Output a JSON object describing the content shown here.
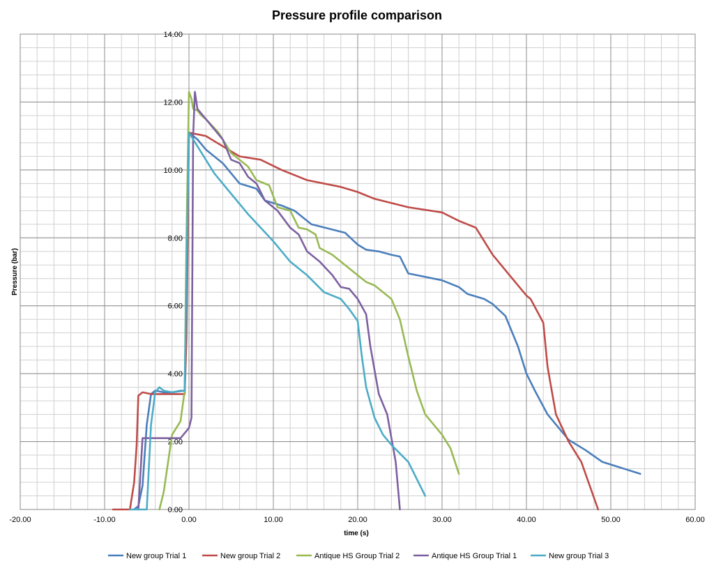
{
  "chart_data": {
    "type": "line",
    "title": "Pressure profile comparison",
    "xlabel": "time (s)",
    "ylabel": "Pressure (bar)",
    "xlim": [
      -20,
      60
    ],
    "ylim": [
      0,
      14
    ],
    "x_major_ticks": [
      -20,
      -10,
      0,
      10,
      20,
      30,
      40,
      50,
      60
    ],
    "y_major_ticks": [
      0,
      2,
      4,
      6,
      8,
      10,
      12,
      14
    ],
    "x_tick_labels": [
      "-20.00",
      "-10.00",
      "0.00",
      "10.00",
      "20.00",
      "30.00",
      "40.00",
      "50.00",
      "60.00"
    ],
    "y_tick_labels": [
      "0.00",
      "2.00",
      "4.00",
      "6.00",
      "8.00",
      "10.00",
      "12.00",
      "14.00"
    ],
    "grid": true,
    "legend_position": "bottom",
    "series": [
      {
        "name": "New group Trial 1",
        "color": "#4A7EBB",
        "points": [
          [
            -6.5,
            0
          ],
          [
            -6,
            0.1
          ],
          [
            -5.5,
            0.7
          ],
          [
            -5,
            2.5
          ],
          [
            -4.5,
            3.4
          ],
          [
            -4,
            3.5
          ],
          [
            -3,
            3.45
          ],
          [
            -2,
            3.45
          ],
          [
            -0.5,
            3.5
          ],
          [
            -0.2,
            8
          ],
          [
            0,
            11.1
          ],
          [
            1,
            10.9
          ],
          [
            2,
            10.6
          ],
          [
            4,
            10.2
          ],
          [
            6,
            9.6
          ],
          [
            8,
            9.45
          ],
          [
            9,
            9.1
          ],
          [
            11,
            8.95
          ],
          [
            12.5,
            8.8
          ],
          [
            14.5,
            8.4
          ],
          [
            18.5,
            8.15
          ],
          [
            20,
            7.8
          ],
          [
            21,
            7.65
          ],
          [
            22.5,
            7.6
          ],
          [
            24,
            7.5
          ],
          [
            25,
            7.45
          ],
          [
            26,
            6.95
          ],
          [
            30,
            6.75
          ],
          [
            32,
            6.55
          ],
          [
            33,
            6.35
          ],
          [
            35,
            6.2
          ],
          [
            36,
            6.05
          ],
          [
            37.5,
            5.7
          ],
          [
            39,
            4.8
          ],
          [
            40,
            4
          ],
          [
            41,
            3.5
          ],
          [
            42.5,
            2.8
          ],
          [
            45,
            2.05
          ],
          [
            47,
            1.75
          ],
          [
            49,
            1.4
          ],
          [
            53.5,
            1.05
          ]
        ]
      },
      {
        "name": "New group Trial 2",
        "color": "#BE4B48",
        "points": [
          [
            -9,
            0
          ],
          [
            -7,
            0
          ],
          [
            -6.5,
            0.8
          ],
          [
            -6.2,
            1.9
          ],
          [
            -6,
            3.35
          ],
          [
            -5.5,
            3.45
          ],
          [
            -4.5,
            3.4
          ],
          [
            -3,
            3.4
          ],
          [
            -1,
            3.4
          ],
          [
            -0.5,
            3.4
          ],
          [
            -0.3,
            5
          ],
          [
            0,
            11.1
          ],
          [
            2,
            11
          ],
          [
            4,
            10.7
          ],
          [
            6,
            10.4
          ],
          [
            8.5,
            10.3
          ],
          [
            11,
            10
          ],
          [
            14,
            9.7
          ],
          [
            18,
            9.5
          ],
          [
            20,
            9.35
          ],
          [
            22,
            9.15
          ],
          [
            26,
            8.9
          ],
          [
            30,
            8.75
          ],
          [
            32,
            8.5
          ],
          [
            34,
            8.3
          ],
          [
            36,
            7.5
          ],
          [
            38,
            6.9
          ],
          [
            40,
            6.3
          ],
          [
            40.5,
            6.2
          ],
          [
            42,
            5.5
          ],
          [
            42.5,
            4.2
          ],
          [
            43,
            3.5
          ],
          [
            43.5,
            2.8
          ],
          [
            45,
            2.0
          ],
          [
            46.5,
            1.4
          ],
          [
            48.5,
            0
          ]
        ]
      },
      {
        "name": "Antique HS Group Trial 2",
        "color": "#98B954",
        "points": [
          [
            -3.5,
            0
          ],
          [
            -3,
            0.5
          ],
          [
            -2,
            2.2
          ],
          [
            -1,
            2.6
          ],
          [
            -0.5,
            3.5
          ],
          [
            -0.3,
            8
          ],
          [
            0,
            12.3
          ],
          [
            0.3,
            12.1
          ],
          [
            0.5,
            11.8
          ],
          [
            1,
            11.75
          ],
          [
            1.5,
            11.6
          ],
          [
            2,
            11.5
          ],
          [
            3.5,
            11.1
          ],
          [
            5,
            10.5
          ],
          [
            7,
            10.1
          ],
          [
            8,
            9.7
          ],
          [
            9.5,
            9.55
          ],
          [
            10.5,
            8.9
          ],
          [
            12,
            8.8
          ],
          [
            13,
            8.3
          ],
          [
            14,
            8.25
          ],
          [
            15,
            8.1
          ],
          [
            15.5,
            7.7
          ],
          [
            17,
            7.5
          ],
          [
            20,
            6.9
          ],
          [
            21,
            6.7
          ],
          [
            22,
            6.6
          ],
          [
            24,
            6.2
          ],
          [
            25,
            5.6
          ],
          [
            26,
            4.5
          ],
          [
            27,
            3.5
          ],
          [
            28,
            2.8
          ],
          [
            30,
            2.2
          ],
          [
            31,
            1.8
          ],
          [
            32,
            1.05
          ]
        ]
      },
      {
        "name": "Antique HS Group Trial 1",
        "color": "#7D60A0",
        "points": [
          [
            -6,
            0
          ],
          [
            -5.5,
            2.1
          ],
          [
            -5,
            2.1
          ],
          [
            -3,
            2.1
          ],
          [
            -1,
            2.1
          ],
          [
            0,
            2.4
          ],
          [
            0.3,
            2.7
          ],
          [
            0.5,
            11
          ],
          [
            0.7,
            12.3
          ],
          [
            1,
            11.8
          ],
          [
            2,
            11.5
          ],
          [
            3,
            11.2
          ],
          [
            4,
            10.9
          ],
          [
            5,
            10.3
          ],
          [
            6,
            10.2
          ],
          [
            7,
            9.8
          ],
          [
            8,
            9.6
          ],
          [
            9,
            9.1
          ],
          [
            10.5,
            8.8
          ],
          [
            12,
            8.3
          ],
          [
            13,
            8.1
          ],
          [
            14,
            7.6
          ],
          [
            15.5,
            7.3
          ],
          [
            17,
            6.9
          ],
          [
            18,
            6.55
          ],
          [
            19,
            6.5
          ],
          [
            20,
            6.2
          ],
          [
            21,
            5.75
          ],
          [
            21.5,
            4.8
          ],
          [
            22,
            4.1
          ],
          [
            22.5,
            3.4
          ],
          [
            23.5,
            2.8
          ],
          [
            24.5,
            1.4
          ],
          [
            25,
            0
          ]
        ]
      },
      {
        "name": "New group Trial 3",
        "color": "#4BACC6",
        "points": [
          [
            -7,
            0
          ],
          [
            -5,
            0
          ],
          [
            -4.5,
            2.5
          ],
          [
            -4,
            3.45
          ],
          [
            -3.5,
            3.6
          ],
          [
            -3,
            3.5
          ],
          [
            -2,
            3.45
          ],
          [
            -1,
            3.5
          ],
          [
            -0.5,
            3.5
          ],
          [
            -0.3,
            7
          ],
          [
            0,
            11.1
          ],
          [
            2,
            10.3
          ],
          [
            3,
            9.9
          ],
          [
            5,
            9.3
          ],
          [
            7,
            8.7
          ],
          [
            8.5,
            8.3
          ],
          [
            10,
            7.9
          ],
          [
            12,
            7.3
          ],
          [
            14,
            6.9
          ],
          [
            16,
            6.4
          ],
          [
            18,
            6.2
          ],
          [
            19,
            5.9
          ],
          [
            20,
            5.55
          ],
          [
            20.5,
            4.5
          ],
          [
            21,
            3.6
          ],
          [
            22,
            2.7
          ],
          [
            23,
            2.2
          ],
          [
            24,
            1.9
          ],
          [
            26,
            1.4
          ],
          [
            28,
            0.4
          ]
        ]
      }
    ]
  }
}
